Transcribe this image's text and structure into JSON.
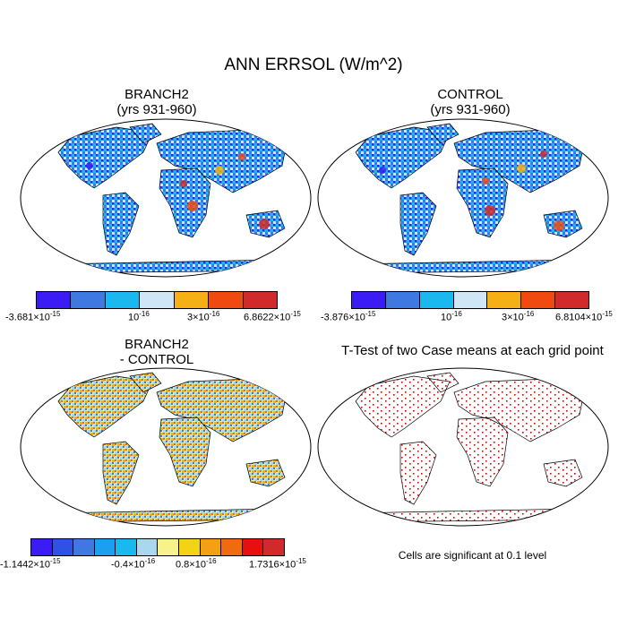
{
  "title": "ANN ERRSOL (W/m^2)",
  "panels": {
    "branch2": {
      "title_line1": "BRANCH2",
      "title_line2": "(yrs 931-960)"
    },
    "control": {
      "title_line1": "CONTROL",
      "title_line2": "(yrs 931-960)"
    },
    "diff": {
      "title_line1": "BRANCH2",
      "title_line2": "- CONTROL"
    },
    "ttest": {
      "title": "T-Test of two Case means at each grid point",
      "note": "Cells are significant at 0.1 level"
    }
  },
  "colorbars": {
    "branch2": {
      "colors": [
        "#3b1cf5",
        "#3f78e0",
        "#1ab8ef",
        "#cfe6f6",
        "#f4b014",
        "#f04a10",
        "#d12a2a"
      ],
      "labels": {
        "l1_base": "-3.681×10",
        "l1_exp": "-15",
        "l2_base": "10",
        "l2_exp": "-16",
        "l3_base": "3×10",
        "l3_exp": "-16",
        "l4_base": "6.8622×10",
        "l4_exp": "-15"
      }
    },
    "control": {
      "colors": [
        "#3b1cf5",
        "#3f78e0",
        "#1ab8ef",
        "#cfe6f6",
        "#f4b014",
        "#f04a10",
        "#d12a2a"
      ],
      "labels": {
        "l1_base": "-3.876×10",
        "l1_exp": "-15",
        "l2_base": "10",
        "l2_exp": "-16",
        "l3_base": "3×10",
        "l3_exp": "-16",
        "l4_base": "6.8104×10",
        "l4_exp": "-15"
      }
    },
    "diff": {
      "colors": [
        "#3b1cf5",
        "#2f52e6",
        "#3f78e0",
        "#1aa0ef",
        "#1ab8ef",
        "#a9d7f0",
        "#f7f28c",
        "#f4d214",
        "#f4a014",
        "#f06a10",
        "#e80f0f",
        "#d12a2a"
      ],
      "labels": {
        "l1_base": "-1.1442×10",
        "l1_exp": "-15",
        "l2_base": "-0.4×10",
        "l2_exp": "-16",
        "l3_base": "0.8×10",
        "l3_exp": "-16",
        "l4_base": "1.7316×10",
        "l4_exp": "-15"
      }
    }
  }
}
